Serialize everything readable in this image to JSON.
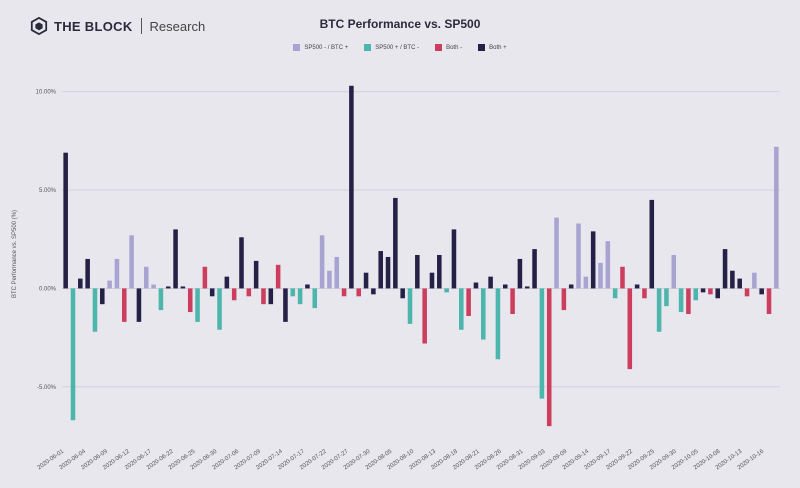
{
  "brand": {
    "name": "THE BLOCK",
    "sub": "Research"
  },
  "chart_data": {
    "type": "bar",
    "title": "BTC Performance vs. SP500",
    "ylabel": "BTC Performance vs. SP500 (%)",
    "xlabel": "",
    "ylim": [
      -7.5,
      11
    ],
    "yticks": [
      -5,
      0,
      5,
      10
    ],
    "ytick_labels": [
      "-5.00%",
      "0.00%",
      "5.00%",
      "10.00%"
    ],
    "grid": "horizontal",
    "legend_position": "top-center",
    "legend": [
      {
        "key": "a",
        "label": "SP500 - / BTC +",
        "color": "#a9a3d2"
      },
      {
        "key": "b",
        "label": "SP500 + / BTC -",
        "color": "#4cb5ac"
      },
      {
        "key": "c",
        "label": "Both -",
        "color": "#cc3d5e"
      },
      {
        "key": "d",
        "label": "Both +",
        "color": "#252046"
      }
    ],
    "x_tick_labels": [
      "2020-06-01",
      "2020-06-04",
      "2020-06-09",
      "2020-06-12",
      "2020-06-17",
      "2020-06-22",
      "2020-06-25",
      "2020-06-30",
      "2020-07-06",
      "2020-07-09",
      "2020-07-14",
      "2020-07-17",
      "2020-07-22",
      "2020-07-27",
      "2020-07-30",
      "2020-08-05",
      "2020-08-10",
      "2020-08-13",
      "2020-08-18",
      "2020-08-21",
      "2020-08-26",
      "2020-08-31",
      "2020-09-03",
      "2020-09-09",
      "2020-09-14",
      "2020-09-17",
      "2020-09-22",
      "2020-09-25",
      "2020-09-30",
      "2020-10-05",
      "2020-10-08",
      "2020-10-13",
      "2020-10-16"
    ],
    "bars": [
      {
        "v": 6.9,
        "c": "d"
      },
      {
        "v": -6.7,
        "c": "b"
      },
      {
        "v": 0.5,
        "c": "d"
      },
      {
        "v": 1.5,
        "c": "d"
      },
      {
        "v": -2.2,
        "c": "b"
      },
      {
        "v": -0.8,
        "c": "d"
      },
      {
        "v": 0.4,
        "c": "a"
      },
      {
        "v": 1.5,
        "c": "a"
      },
      {
        "v": -1.7,
        "c": "c"
      },
      {
        "v": 2.7,
        "c": "a"
      },
      {
        "v": -1.7,
        "c": "d"
      },
      {
        "v": 1.1,
        "c": "a"
      },
      {
        "v": 0.2,
        "c": "a"
      },
      {
        "v": -1.1,
        "c": "b"
      },
      {
        "v": 0.1,
        "c": "d"
      },
      {
        "v": 3.0,
        "c": "d"
      },
      {
        "v": 0.1,
        "c": "d"
      },
      {
        "v": -1.2,
        "c": "c"
      },
      {
        "v": -1.7,
        "c": "b"
      },
      {
        "v": 1.1,
        "c": "c"
      },
      {
        "v": -0.4,
        "c": "d"
      },
      {
        "v": -2.1,
        "c": "b"
      },
      {
        "v": 0.6,
        "c": "d"
      },
      {
        "v": -0.6,
        "c": "c"
      },
      {
        "v": 2.6,
        "c": "d"
      },
      {
        "v": -0.4,
        "c": "c"
      },
      {
        "v": 1.4,
        "c": "d"
      },
      {
        "v": -0.8,
        "c": "c"
      },
      {
        "v": -0.8,
        "c": "d"
      },
      {
        "v": 1.2,
        "c": "c"
      },
      {
        "v": -1.7,
        "c": "d"
      },
      {
        "v": -0.4,
        "c": "b"
      },
      {
        "v": -0.8,
        "c": "b"
      },
      {
        "v": 0.2,
        "c": "d"
      },
      {
        "v": -1.0,
        "c": "b"
      },
      {
        "v": 2.7,
        "c": "a"
      },
      {
        "v": 0.9,
        "c": "a"
      },
      {
        "v": 1.6,
        "c": "a"
      },
      {
        "v": -0.4,
        "c": "c"
      },
      {
        "v": 10.3,
        "c": "d"
      },
      {
        "v": -0.4,
        "c": "c"
      },
      {
        "v": 0.8,
        "c": "d"
      },
      {
        "v": -0.3,
        "c": "d"
      },
      {
        "v": 1.9,
        "c": "d"
      },
      {
        "v": 1.6,
        "c": "d"
      },
      {
        "v": 4.6,
        "c": "d"
      },
      {
        "v": -0.5,
        "c": "d"
      },
      {
        "v": -1.8,
        "c": "b"
      },
      {
        "v": 1.7,
        "c": "d"
      },
      {
        "v": -2.8,
        "c": "c"
      },
      {
        "v": 0.8,
        "c": "d"
      },
      {
        "v": 1.7,
        "c": "d"
      },
      {
        "v": -0.2,
        "c": "b"
      },
      {
        "v": 3.0,
        "c": "d"
      },
      {
        "v": -2.1,
        "c": "b"
      },
      {
        "v": -1.4,
        "c": "c"
      },
      {
        "v": 0.3,
        "c": "d"
      },
      {
        "v": -2.6,
        "c": "b"
      },
      {
        "v": 0.6,
        "c": "d"
      },
      {
        "v": -3.6,
        "c": "b"
      },
      {
        "v": 0.2,
        "c": "d"
      },
      {
        "v": -1.3,
        "c": "c"
      },
      {
        "v": 1.5,
        "c": "d"
      },
      {
        "v": 0.1,
        "c": "d"
      },
      {
        "v": 2.0,
        "c": "d"
      },
      {
        "v": -5.6,
        "c": "b"
      },
      {
        "v": -7.0,
        "c": "c"
      },
      {
        "v": 3.6,
        "c": "a"
      },
      {
        "v": -1.1,
        "c": "c"
      },
      {
        "v": 0.2,
        "c": "d"
      },
      {
        "v": 3.3,
        "c": "a"
      },
      {
        "v": 0.6,
        "c": "a"
      },
      {
        "v": 2.9,
        "c": "d"
      },
      {
        "v": 1.3,
        "c": "a"
      },
      {
        "v": 2.4,
        "c": "a"
      },
      {
        "v": -0.5,
        "c": "b"
      },
      {
        "v": 1.1,
        "c": "c"
      },
      {
        "v": -4.1,
        "c": "c"
      },
      {
        "v": 0.2,
        "c": "d"
      },
      {
        "v": -0.5,
        "c": "c"
      },
      {
        "v": 4.5,
        "c": "d"
      },
      {
        "v": -2.2,
        "c": "b"
      },
      {
        "v": -0.9,
        "c": "b"
      },
      {
        "v": 1.7,
        "c": "a"
      },
      {
        "v": -1.2,
        "c": "b"
      },
      {
        "v": -1.3,
        "c": "c"
      },
      {
        "v": -0.6,
        "c": "b"
      },
      {
        "v": -0.2,
        "c": "d"
      },
      {
        "v": -0.3,
        "c": "c"
      },
      {
        "v": -0.5,
        "c": "d"
      },
      {
        "v": 2.0,
        "c": "d"
      },
      {
        "v": 0.9,
        "c": "d"
      },
      {
        "v": 0.5,
        "c": "d"
      },
      {
        "v": -0.4,
        "c": "c"
      },
      {
        "v": 0.8,
        "c": "a"
      },
      {
        "v": -0.3,
        "c": "d"
      },
      {
        "v": -1.3,
        "c": "c"
      },
      {
        "v": 7.2,
        "c": "a"
      }
    ]
  }
}
